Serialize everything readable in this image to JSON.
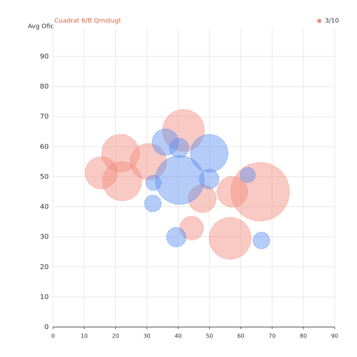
{
  "chart_data": {
    "type": "bubble",
    "title": "Cuadrat 6/B Qmstugt",
    "y_label": "Avg Ofic",
    "xlim": [
      0,
      90
    ],
    "ylim": [
      0,
      90
    ],
    "xticks": [
      0,
      10,
      20,
      30,
      40,
      50,
      60,
      70,
      80,
      90
    ],
    "yticks": [
      0,
      10,
      20,
      30,
      40,
      50,
      60,
      70,
      80,
      90
    ],
    "grid": true,
    "legend": "top-right",
    "series": [
      {
        "name": "3/10",
        "color": "#f28a7a",
        "x": [
          21.6,
          15.4,
          22.1,
          30.5,
          41.7,
          47.7,
          57.3,
          66.2,
          44.3,
          56.6
        ],
        "values": [
          57.8,
          51.3,
          48.5,
          55.0,
          65.4,
          42.7,
          45.0,
          45.0,
          32.9,
          29.5
        ],
        "sizes": [
          27,
          23,
          28,
          26,
          30,
          20,
          22,
          42,
          17,
          30
        ]
      },
      {
        "color": "#5b8ff0",
        "x": [
          35.9,
          40.3,
          49.9,
          40.5,
          32.1,
          49.9,
          62.2,
          31.9,
          39.4,
          66.6
        ],
        "values": [
          61.5,
          59.6,
          57.8,
          48.9,
          48.0,
          49.2,
          50.6,
          41.1,
          29.9,
          28.8
        ],
        "sizes": [
          19,
          14,
          27,
          35,
          11,
          14,
          11,
          12,
          14,
          12
        ]
      }
    ]
  }
}
